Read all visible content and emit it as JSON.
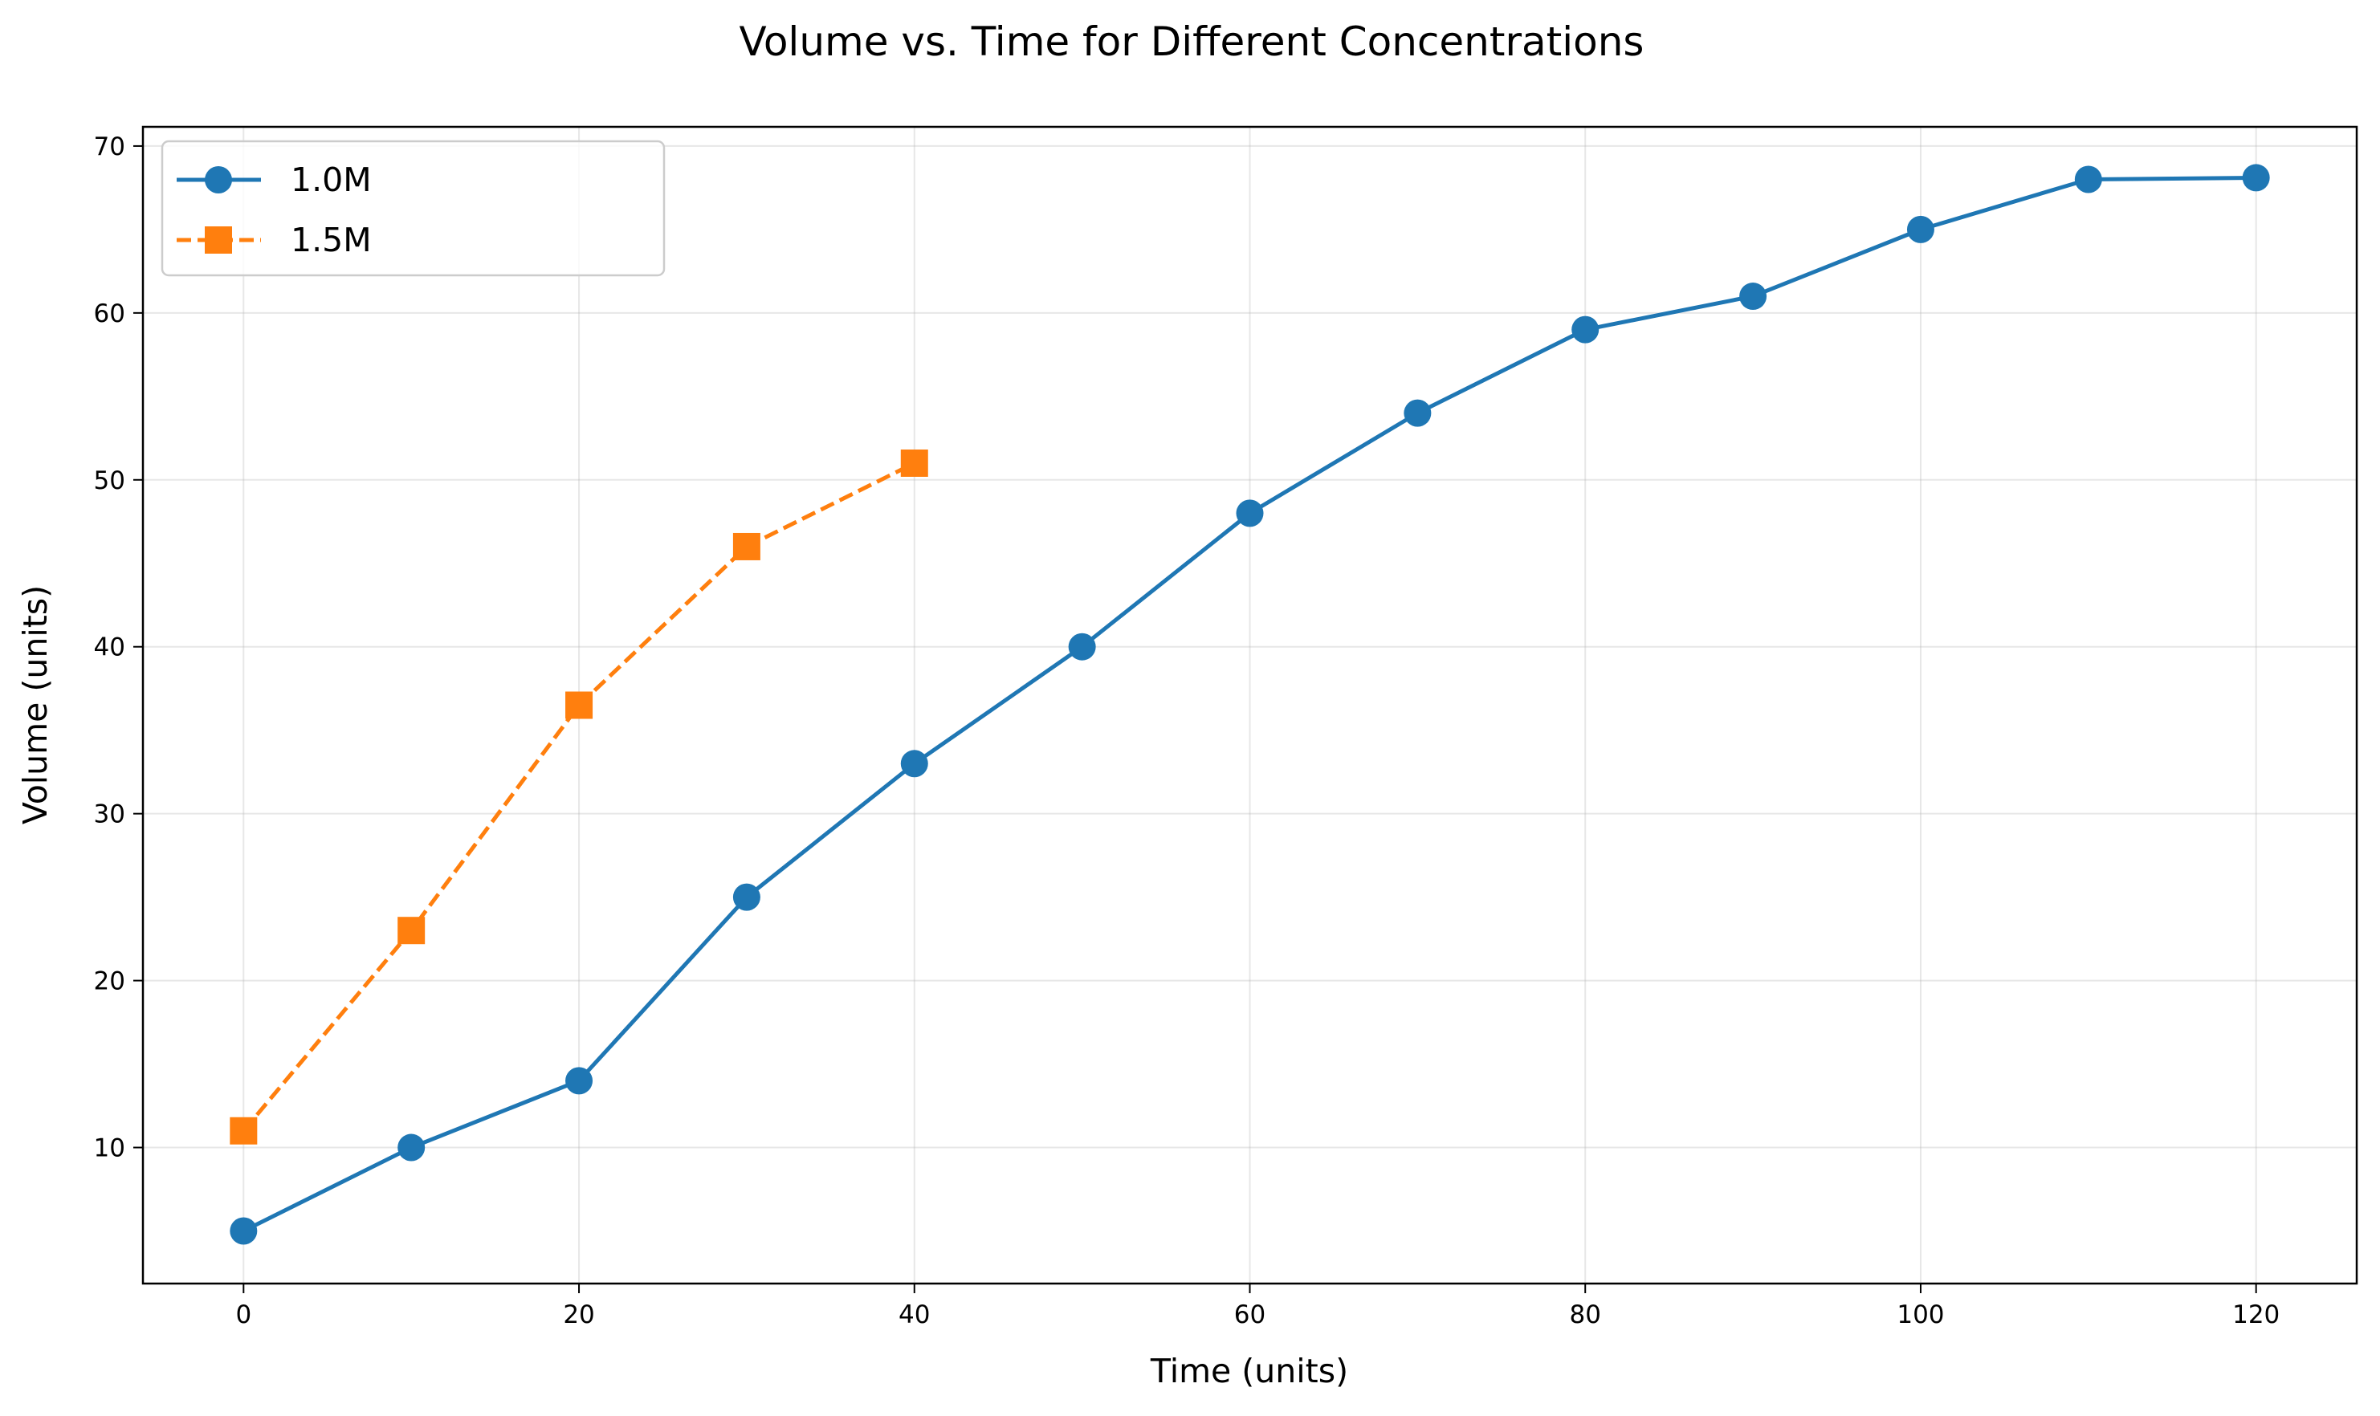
{
  "chart_data": {
    "type": "line",
    "title": "Volume vs. Time for Different Concentrations",
    "xlabel": "Time (units)",
    "ylabel": "Volume (units)",
    "xlim": [
      -6,
      126
    ],
    "ylim": [
      1.85,
      71.15
    ],
    "xticks": [
      0,
      20,
      40,
      60,
      80,
      100,
      120
    ],
    "yticks": [
      10,
      20,
      30,
      40,
      50,
      60,
      70
    ],
    "grid": true,
    "legend_position": "top-left",
    "series": [
      {
        "name": "1.0M",
        "color": "#1f77b4",
        "marker": "circle",
        "line_style": "solid",
        "x": [
          0,
          10,
          20,
          30,
          40,
          50,
          60,
          70,
          80,
          90,
          100,
          110,
          120
        ],
        "y": [
          5,
          10,
          14,
          25,
          33,
          40,
          48,
          54,
          59,
          61,
          65,
          68,
          68.1
        ]
      },
      {
        "name": "1.5M",
        "color": "#ff7f0e",
        "marker": "square",
        "line_style": "dashed",
        "x": [
          0,
          10,
          20,
          30,
          40
        ],
        "y": [
          11,
          23,
          36.5,
          46,
          51
        ]
      }
    ]
  }
}
